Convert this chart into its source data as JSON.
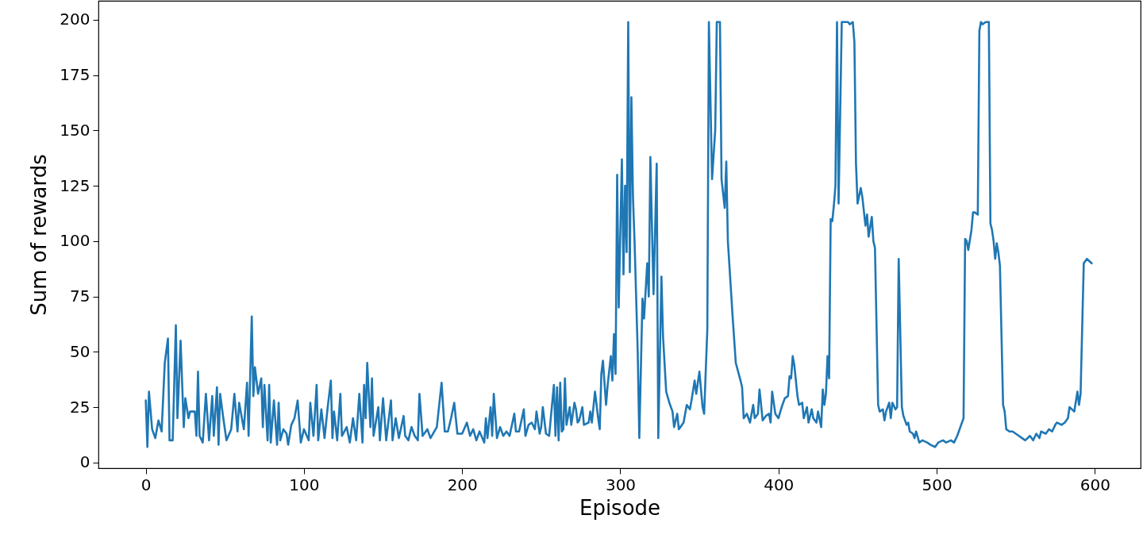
{
  "chart_data": {
    "type": "line",
    "xlabel": "Episode",
    "ylabel": "Sum of rewards",
    "color": "#1f77b4",
    "grid": false,
    "legend": false,
    "xlim": [
      -29.95,
      628.95
    ],
    "xticks": [
      0,
      100,
      200,
      300,
      400,
      500,
      600
    ],
    "ylim": [
      -2.6,
      208.6
    ],
    "yticks": [
      0,
      25,
      50,
      75,
      100,
      125,
      150,
      175,
      200
    ],
    "x": [
      0,
      1,
      2,
      4,
      6,
      8,
      10,
      12,
      14,
      15,
      17,
      19,
      20,
      22,
      24,
      25,
      27,
      28,
      31,
      32,
      33,
      34,
      36,
      38,
      40,
      42,
      43,
      45,
      46,
      47,
      49,
      51,
      54,
      56,
      58,
      59,
      62,
      64,
      65,
      67,
      68,
      69,
      71,
      73,
      74,
      75,
      77,
      78,
      79,
      81,
      83,
      84,
      85,
      87,
      89,
      90,
      92,
      94,
      96,
      98,
      100,
      103,
      104,
      106,
      108,
      109,
      111,
      113,
      115,
      117,
      118,
      119,
      121,
      123,
      124,
      127,
      129,
      131,
      133,
      135,
      137,
      138,
      139,
      140,
      142,
      143,
      144,
      147,
      148,
      150,
      152,
      155,
      156,
      158,
      160,
      163,
      164,
      166,
      168,
      170,
      172,
      173,
      175,
      178,
      180,
      184,
      187,
      189,
      191,
      193,
      195,
      197,
      200,
      203,
      205,
      207,
      209,
      211,
      214,
      215,
      216,
      218,
      219,
      220,
      222,
      224,
      226,
      228,
      230,
      233,
      234,
      236,
      239,
      240,
      242,
      244,
      246,
      247,
      249,
      250,
      251,
      253,
      255,
      258,
      259,
      260,
      261,
      262,
      263,
      264,
      265,
      266,
      268,
      269,
      271,
      272,
      273,
      274,
      276,
      277,
      280,
      281,
      282,
      284,
      286,
      287,
      288,
      289,
      291,
      292,
      294,
      295,
      296,
      297,
      298,
      299,
      301,
      302,
      303,
      304,
      305,
      306,
      307,
      308,
      309,
      311,
      312,
      314,
      315,
      317,
      318,
      319,
      321,
      323,
      324,
      326,
      327,
      329,
      331,
      333,
      334,
      336,
      337,
      338,
      340,
      342,
      344,
      345,
      347,
      348,
      350,
      352,
      353,
      355,
      356,
      358,
      360,
      361,
      363,
      364,
      366,
      367,
      368,
      371,
      373,
      376,
      377,
      378,
      380,
      382,
      384,
      385,
      387,
      388,
      390,
      392,
      394,
      395,
      396,
      398,
      400,
      402,
      404,
      406,
      407,
      408,
      409,
      410,
      412,
      413,
      415,
      416,
      418,
      419,
      421,
      422,
      424,
      425,
      427,
      428,
      429,
      430,
      431,
      432,
      433,
      434,
      435,
      436,
      437,
      438,
      440,
      442,
      444,
      445,
      447,
      448,
      449,
      450,
      452,
      453,
      455,
      456,
      457,
      459,
      460,
      461,
      463,
      464,
      466,
      467,
      468,
      470,
      471,
      472,
      474,
      475,
      476,
      478,
      479,
      481,
      482,
      483,
      485,
      486,
      487,
      489,
      491,
      494,
      496,
      499,
      501,
      504,
      506,
      509,
      511,
      513,
      515,
      517,
      518,
      519,
      520,
      522,
      523,
      524,
      526,
      527,
      528,
      529,
      531,
      533,
      534,
      535,
      536,
      537,
      538,
      539,
      540,
      542,
      543,
      544,
      546,
      548,
      550,
      552,
      554,
      556,
      559,
      561,
      563,
      565,
      566,
      569,
      571,
      573,
      575,
      576,
      579,
      581,
      583,
      584,
      587,
      589,
      590,
      591,
      593,
      595,
      598
    ],
    "values": [
      28,
      7,
      32,
      15,
      11,
      19,
      14,
      45,
      56,
      10,
      10,
      62,
      20,
      55,
      16,
      29,
      20,
      23,
      23,
      12,
      41,
      12,
      9,
      31,
      10,
      30,
      12,
      34,
      8,
      31,
      20,
      10,
      15,
      31,
      14,
      27,
      15,
      36,
      12,
      66,
      30,
      43,
      31,
      38,
      16,
      35,
      10,
      35,
      9,
      28,
      8,
      27,
      10,
      15,
      13,
      8,
      17,
      20,
      28,
      9,
      15,
      10,
      27,
      12,
      35,
      10,
      24,
      11,
      25,
      37,
      11,
      23,
      10,
      31,
      12,
      16,
      9,
      20,
      10,
      31,
      9,
      35,
      20,
      45,
      16,
      38,
      12,
      25,
      10,
      29,
      10,
      28,
      10,
      20,
      11,
      21,
      12,
      10,
      16,
      12,
      10,
      31,
      12,
      15,
      11,
      16,
      36,
      14,
      14,
      20,
      27,
      13,
      13,
      18,
      12,
      15,
      10,
      14,
      9,
      20,
      11,
      25,
      12,
      31,
      11,
      16,
      12,
      14,
      12,
      22,
      14,
      14,
      24,
      12,
      17,
      18,
      15,
      23,
      13,
      16,
      25,
      13,
      12,
      35,
      12,
      34,
      10,
      36,
      14,
      15,
      38,
      17,
      25,
      17,
      27,
      24,
      18,
      19,
      25,
      17,
      18,
      23,
      18,
      32,
      20,
      15,
      40,
      46,
      26,
      35,
      48,
      37,
      58,
      40,
      130,
      70,
      137,
      85,
      125,
      95,
      199,
      86,
      165,
      120,
      100,
      50,
      11,
      74,
      65,
      90,
      75,
      138,
      76,
      135,
      11,
      84,
      57,
      32,
      27,
      23,
      16,
      22,
      15,
      16,
      18,
      26,
      24,
      28,
      37,
      31,
      41,
      25,
      22,
      60,
      199,
      128,
      150,
      199,
      199,
      128,
      115,
      136,
      100,
      66,
      45,
      37,
      34,
      20,
      22,
      18,
      26,
      20,
      22,
      33,
      19,
      21,
      22,
      18,
      32,
      22,
      20,
      25,
      29,
      30,
      39,
      38,
      48,
      44,
      30,
      26,
      27,
      20,
      25,
      18,
      24,
      20,
      18,
      23,
      16,
      33,
      26,
      31,
      48,
      38,
      110,
      109,
      116,
      125,
      199,
      117,
      199,
      199,
      199,
      198,
      199,
      190,
      135,
      117,
      124,
      120,
      107,
      112,
      102,
      111,
      100,
      97,
      26,
      23,
      24,
      19,
      23,
      27,
      20,
      27,
      24,
      25,
      92,
      25,
      21,
      17,
      18,
      14,
      13,
      11,
      14,
      9,
      10,
      9,
      8,
      7,
      9,
      10,
      9,
      10,
      9,
      12,
      16,
      20,
      101,
      100,
      96,
      105,
      113,
      113,
      112,
      195,
      199,
      198,
      199,
      199,
      108,
      105,
      100,
      92,
      99,
      95,
      89,
      26,
      23,
      15,
      14,
      14,
      13,
      12,
      11,
      10,
      12,
      10,
      13,
      11,
      14,
      13,
      15,
      14,
      17,
      18,
      17,
      18,
      20,
      25,
      23,
      32,
      26,
      31,
      90,
      92,
      90
    ]
  }
}
